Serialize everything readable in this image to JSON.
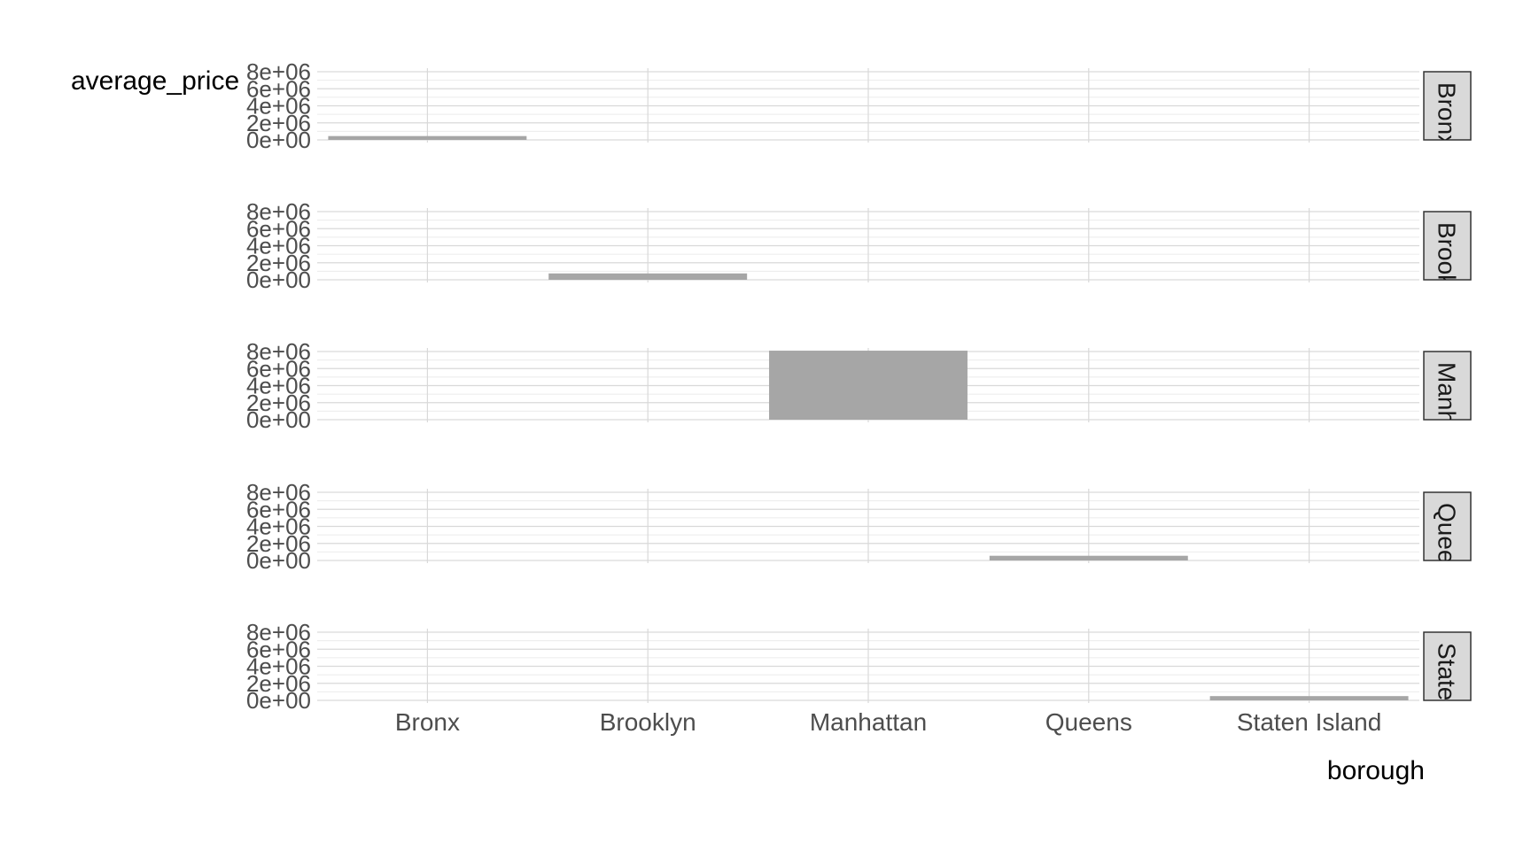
{
  "chart_data": {
    "type": "bar",
    "layout": "facet_grid rows, one panel per borough",
    "xlabel": "borough",
    "ylabel": "average_price",
    "categories": [
      "Bronx",
      "Brooklyn",
      "Manhattan",
      "Queens",
      "Staten Island"
    ],
    "y_ticks": [
      "0e+00",
      "2e+06",
      "4e+06",
      "6e+06",
      "8e+06"
    ],
    "y_tick_values": [
      0,
      2000000,
      4000000,
      6000000,
      8000000
    ],
    "ylim": [
      0,
      8000000
    ],
    "grid": true,
    "panels": [
      {
        "strip_label": "Bronx",
        "category": "Bronx",
        "value": 450000
      },
      {
        "strip_label": "Brooklyn",
        "category": "Brooklyn",
        "value": 750000
      },
      {
        "strip_label": "Manhattan",
        "category": "Manhattan",
        "value": 8100000
      },
      {
        "strip_label": "Queens",
        "category": "Queens",
        "value": 550000
      },
      {
        "strip_label": "Staten Island",
        "category": "Staten Island",
        "value": 500000
      }
    ]
  },
  "colors": {
    "bar": "#a6a6a6",
    "grid_major": "#d9d9d9",
    "grid_minor": "#ebebeb",
    "strip_fill": "#d9d9d9",
    "strip_border": "#333333",
    "tick_text": "#4d4d4d",
    "title_text": "#000000"
  }
}
